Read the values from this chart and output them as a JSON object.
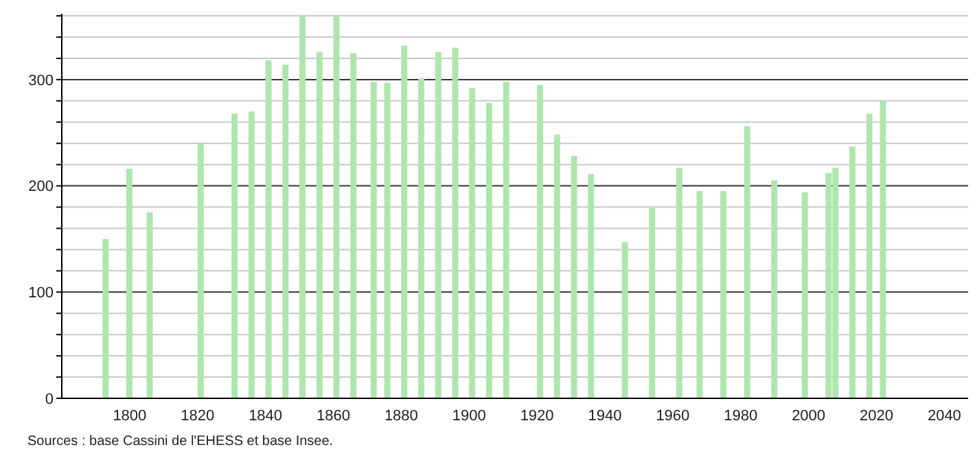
{
  "chart_data": {
    "type": "bar",
    "x": [
      1793,
      1800,
      1806,
      1821,
      1831,
      1836,
      1841,
      1846,
      1851,
      1856,
      1861,
      1866,
      1872,
      1876,
      1881,
      1886,
      1891,
      1896,
      1901,
      1906,
      1911,
      1921,
      1926,
      1931,
      1936,
      1946,
      1954,
      1962,
      1968,
      1975,
      1982,
      1990,
      1999,
      2006,
      2008,
      2013,
      2018,
      2022
    ],
    "values": [
      150,
      216,
      175,
      240,
      268,
      270,
      318,
      314,
      361,
      326,
      360,
      325,
      298,
      297,
      332,
      301,
      326,
      330,
      292,
      278,
      298,
      295,
      248,
      228,
      211,
      147,
      179,
      217,
      195,
      195,
      256,
      205,
      194,
      212,
      217,
      237,
      268,
      280
    ],
    "color": "#aee6ae",
    "xlim": [
      1780,
      2047
    ],
    "xticks": [
      1800,
      1820,
      1840,
      1860,
      1880,
      1900,
      1920,
      1940,
      1960,
      1980,
      2000,
      2020,
      2040
    ],
    "ylim": [
      0,
      362
    ],
    "yticks": [
      0,
      {
        "value": 20,
        "label": null
      },
      {
        "value": 40,
        "label": null
      },
      {
        "value": 60,
        "label": null
      },
      {
        "value": 80,
        "label": null
      },
      100,
      {
        "value": 120,
        "label": null
      },
      {
        "value": 140,
        "label": null
      },
      {
        "value": 160,
        "label": null
      },
      {
        "value": 180,
        "label": null
      },
      200,
      {
        "value": 220,
        "label": null
      },
      {
        "value": 240,
        "label": null
      },
      {
        "value": 260,
        "label": null
      },
      {
        "value": 280,
        "label": null
      },
      300,
      {
        "value": 320,
        "label": null
      },
      {
        "value": 340,
        "label": null
      },
      {
        "value": 360,
        "label": null
      }
    ],
    "grid": "y",
    "annotations": [
      "Sources : base Cassini de l'EHESS et base Insee."
    ]
  }
}
